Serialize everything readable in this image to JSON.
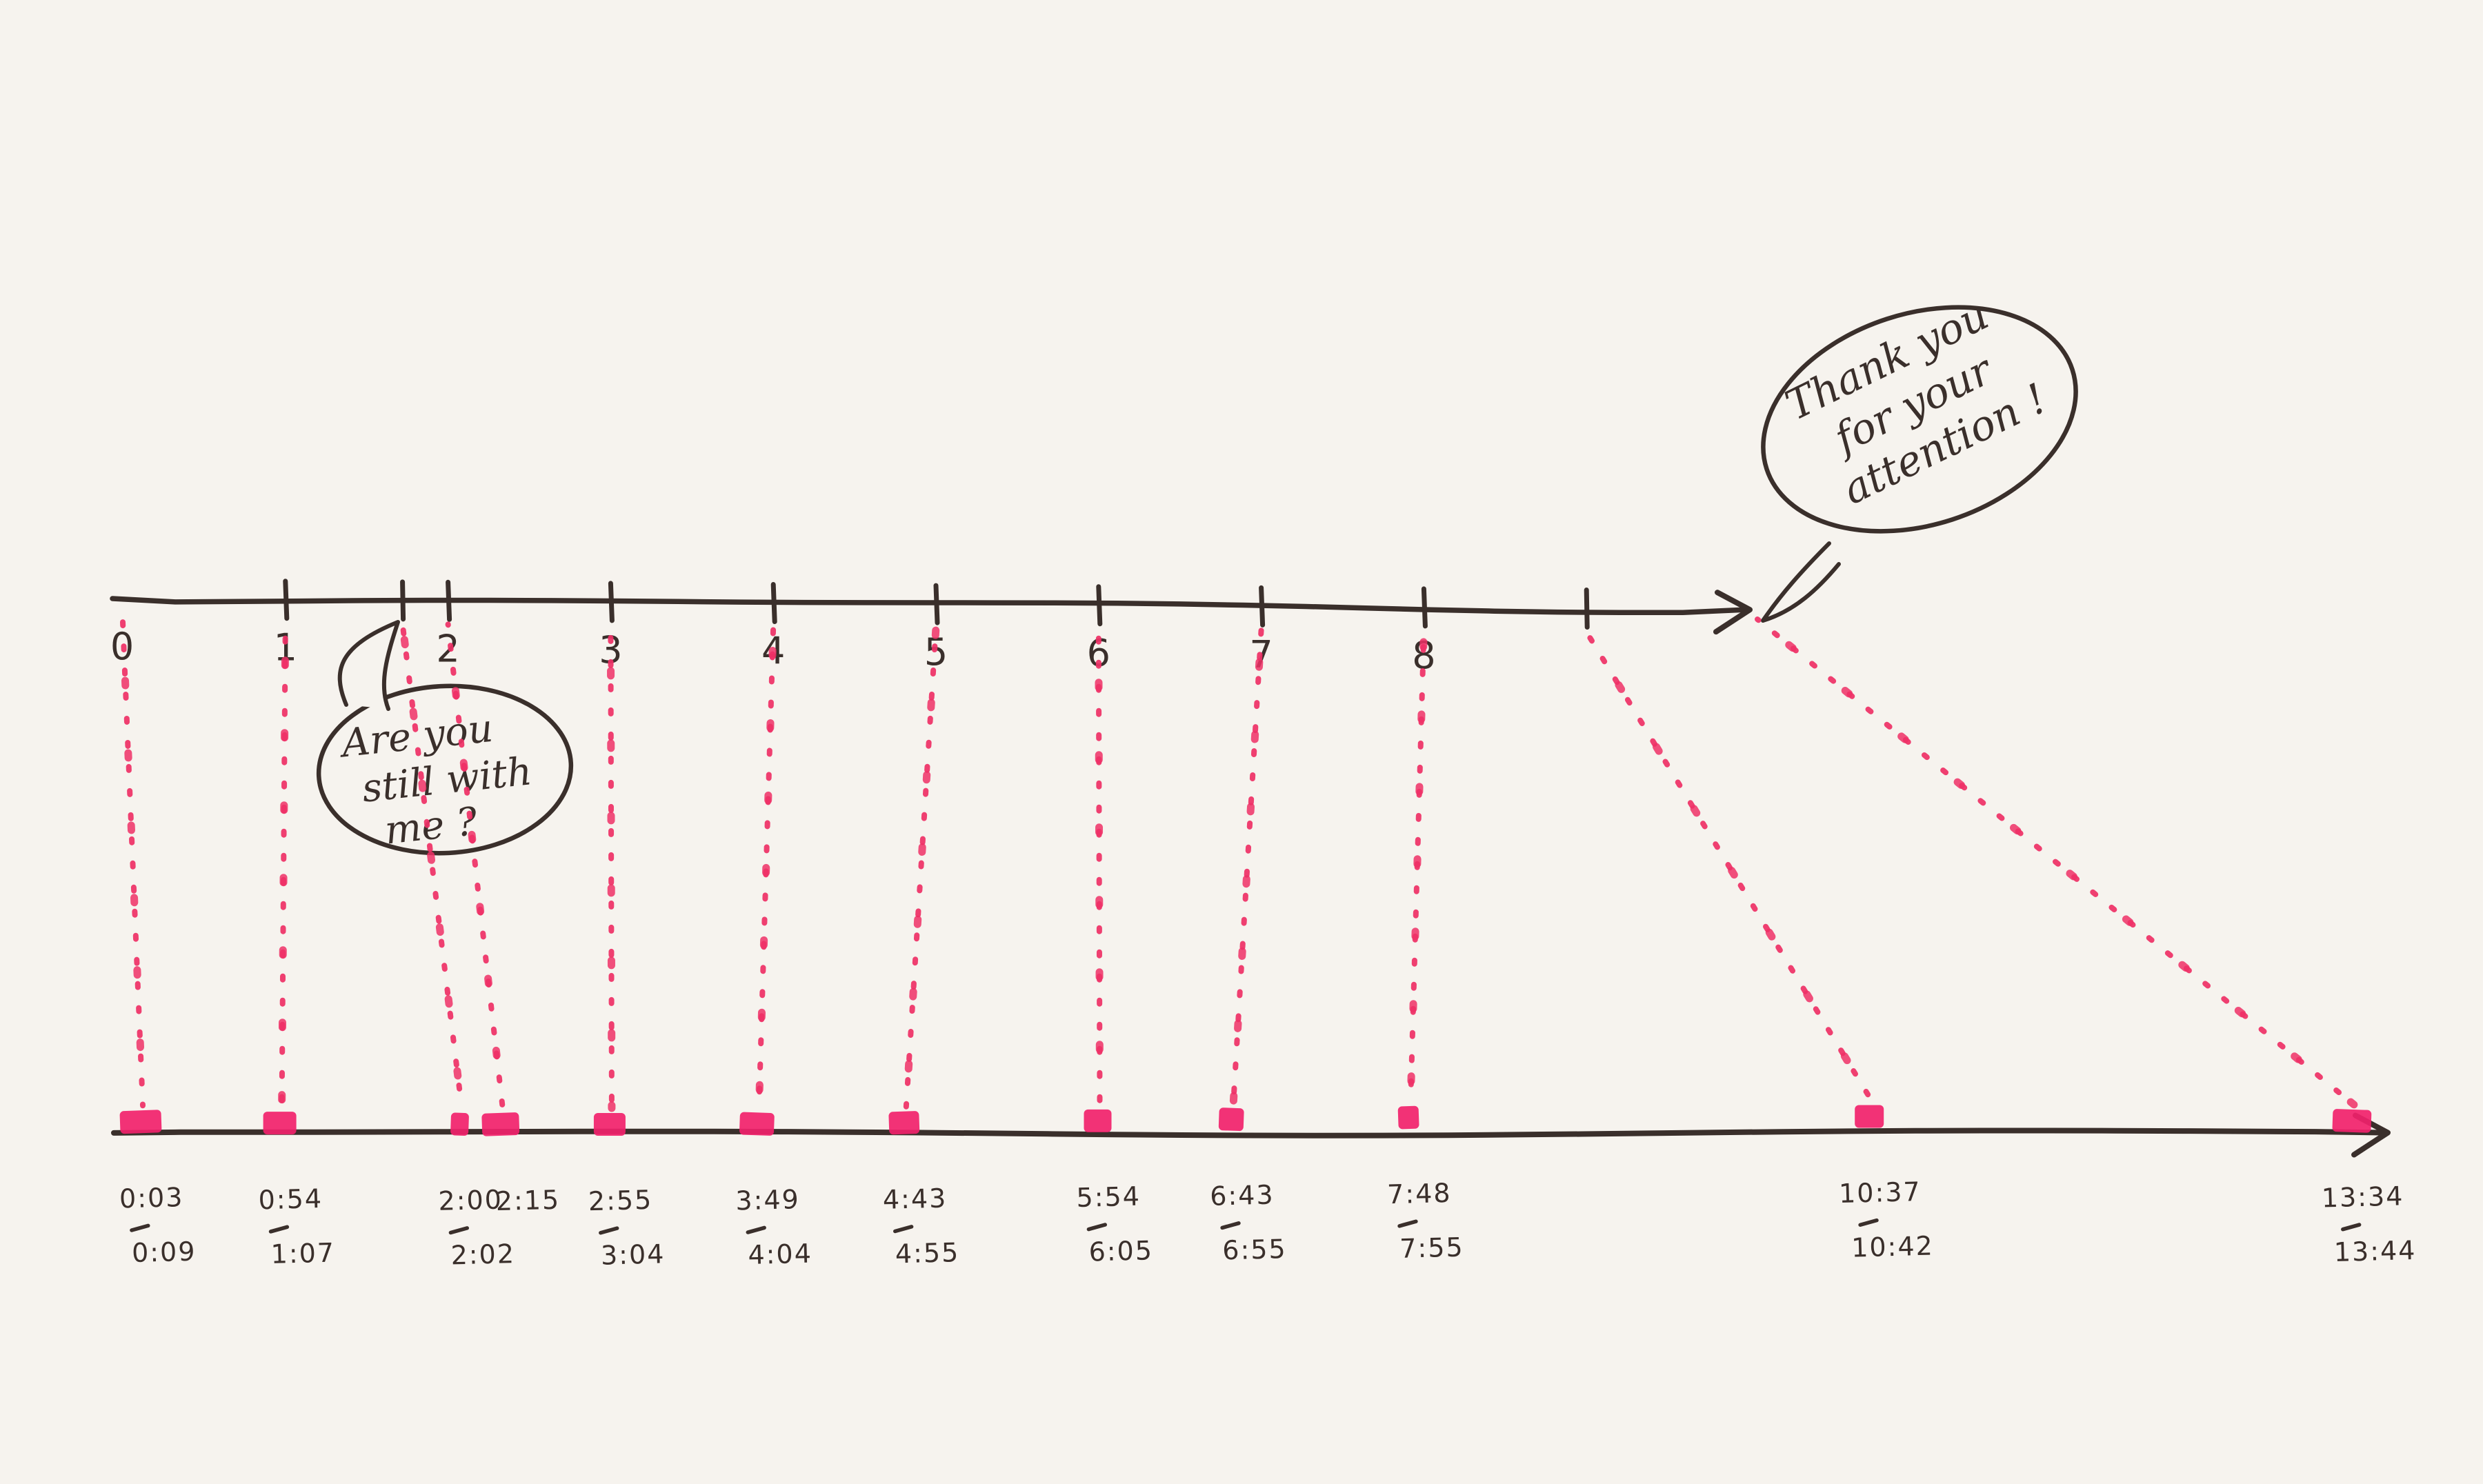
{
  "palette": {
    "paper": "#f6f3ee",
    "ink": "#3a2f2b",
    "marker_dots": "#ee3066",
    "marker_blob": "#f1226b"
  },
  "chart_data": {
    "type": "scatter",
    "description": "Hand-drawn timeline: top number line of slide ticks connected by dotted marker lines to a bottom time axis of intervals",
    "top_axis": {
      "tick_labels": [
        "0",
        "1",
        "2",
        "3",
        "4",
        "5",
        "6",
        "7",
        "8"
      ],
      "extra_unlabeled_tick_values": [
        9
      ],
      "has_right_arrow": true
    },
    "bottom_axis": {
      "unit": "m:ss",
      "has_right_arrow": true
    },
    "connectors": [
      {
        "top_value": 0,
        "time_start": "0:03",
        "time_end": "0:09"
      },
      {
        "top_value": 1,
        "time_start": "0:54",
        "time_end": "1:07"
      },
      {
        "top_value": 1.72,
        "time_start": "2:00",
        "time_end": "2:02",
        "extra_tick": true
      },
      {
        "top_value": 2,
        "time_start": "2:15",
        "time_end": null
      },
      {
        "top_value": 3,
        "time_start": "2:55",
        "time_end": "3:04"
      },
      {
        "top_value": 4,
        "time_start": "3:49",
        "time_end": "4:04"
      },
      {
        "top_value": 5,
        "time_start": "4:43",
        "time_end": "4:55"
      },
      {
        "top_value": 6,
        "time_start": "5:54",
        "time_end": "6:05"
      },
      {
        "top_value": 7,
        "time_start": "6:43",
        "time_end": "6:55"
      },
      {
        "top_value": 8,
        "time_start": "7:48",
        "time_end": "7:55"
      },
      {
        "top_value": 9,
        "time_start": "10:37",
        "time_end": "10:42"
      },
      {
        "top_value": 10.1,
        "time_start": "13:34",
        "time_end": "13:44",
        "from_arrow": true
      }
    ],
    "speech_bubbles": [
      {
        "id": "still-with-me",
        "lines": [
          "Are you",
          "still with",
          "me ?"
        ]
      },
      {
        "id": "thank-you",
        "lines": [
          "Thank you",
          "for your",
          "attention !"
        ]
      }
    ]
  }
}
